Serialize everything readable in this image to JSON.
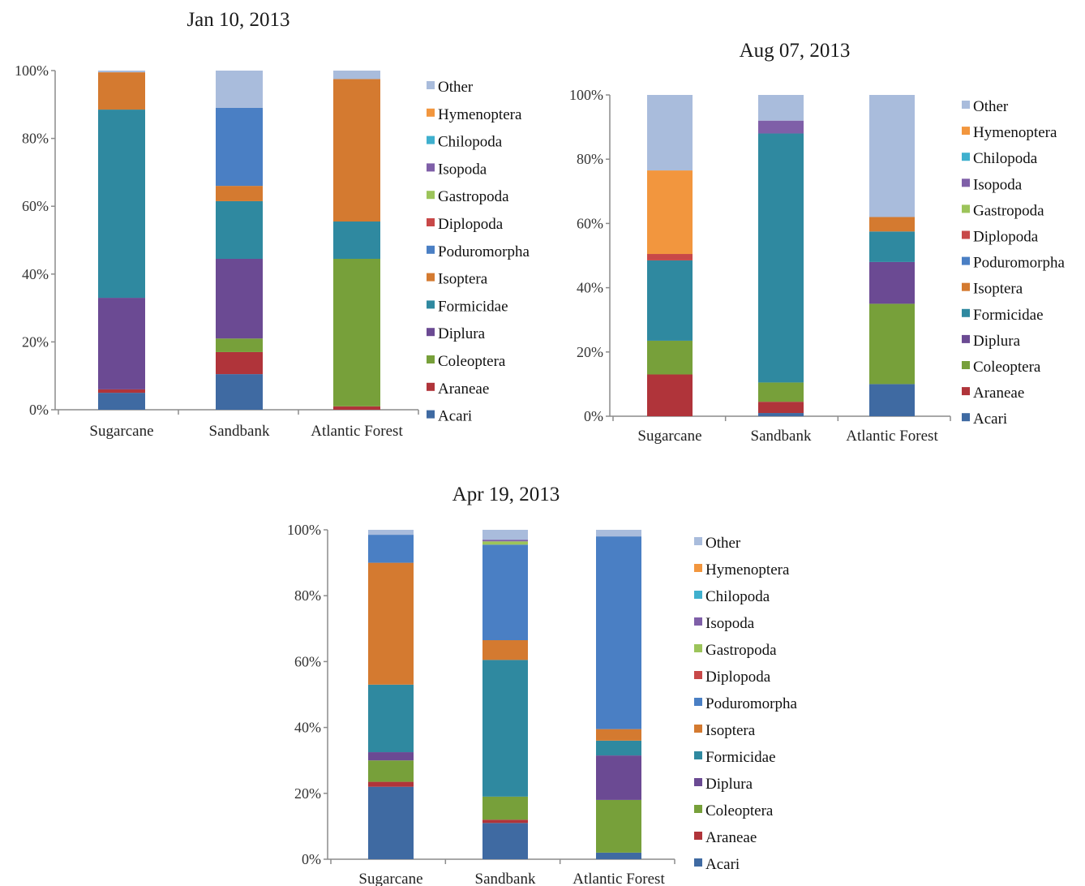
{
  "colors": {
    "Acari": "#3f6aa2",
    "Araneae": "#b0343a",
    "Coleoptera": "#77a03a",
    "Diplura": "#6b4a93",
    "Formicidae": "#2f89a0",
    "Isoptera": "#d47a30",
    "Poduromorpha": "#4a7fc4",
    "Diplopoda": "#c84848",
    "Gastropoda": "#9cc45a",
    "Isopoda": "#7f5fa8",
    "Chilopoda": "#3fb0ce",
    "Hymenoptera": "#f2963e",
    "Other": "#a9bcdc"
  },
  "legend_labels": [
    "Other",
    "Hymenoptera",
    "Chilopoda",
    "Isopoda",
    "Gastropoda",
    "Diplopoda",
    "Poduromorpha",
    "Isoptera",
    "Formicidae",
    "Diplura",
    "Coleoptera",
    "Araneae",
    "Acari"
  ],
  "chart_data": [
    {
      "type": "bar",
      "stacked": true,
      "title": "Jan 10, 2013",
      "categories": [
        "Sugarcane",
        "Sandbank",
        "Atlantic Forest"
      ],
      "ylim": [
        0,
        100
      ],
      "yticks": [
        "0%",
        "20%",
        "40%",
        "60%",
        "80%",
        "100%"
      ],
      "legend_position": "right",
      "series": [
        {
          "name": "Acari",
          "values": [
            5,
            10.5,
            0
          ]
        },
        {
          "name": "Araneae",
          "values": [
            1,
            6.5,
            1
          ]
        },
        {
          "name": "Coleoptera",
          "values": [
            0,
            4,
            43.5
          ]
        },
        {
          "name": "Diplura",
          "values": [
            27,
            23.5,
            0
          ]
        },
        {
          "name": "Formicidae",
          "values": [
            55.5,
            17,
            11
          ]
        },
        {
          "name": "Isoptera",
          "values": [
            11,
            4.5,
            42
          ]
        },
        {
          "name": "Poduromorpha",
          "values": [
            0,
            23,
            0
          ]
        },
        {
          "name": "Diplopoda",
          "values": [
            0,
            0,
            0
          ]
        },
        {
          "name": "Gastropoda",
          "values": [
            0,
            0,
            0
          ]
        },
        {
          "name": "Isopoda",
          "values": [
            0,
            0,
            0
          ]
        },
        {
          "name": "Chilopoda",
          "values": [
            0,
            0,
            0
          ]
        },
        {
          "name": "Hymenoptera",
          "values": [
            0,
            0,
            0
          ]
        },
        {
          "name": "Other",
          "values": [
            0.5,
            11,
            2.5
          ]
        }
      ]
    },
    {
      "type": "bar",
      "stacked": true,
      "title": "Aug 07, 2013",
      "categories": [
        "Sugarcane",
        "Sandbank",
        "Atlantic Forest"
      ],
      "ylim": [
        0,
        100
      ],
      "yticks": [
        "0%",
        "20%",
        "40%",
        "60%",
        "80%",
        "100%"
      ],
      "legend_position": "right",
      "series": [
        {
          "name": "Acari",
          "values": [
            0,
            1,
            10
          ]
        },
        {
          "name": "Araneae",
          "values": [
            13,
            3.5,
            0
          ]
        },
        {
          "name": "Coleoptera",
          "values": [
            10.5,
            6,
            25
          ]
        },
        {
          "name": "Diplura",
          "values": [
            0,
            0,
            13
          ]
        },
        {
          "name": "Formicidae",
          "values": [
            25,
            77.5,
            9.5
          ]
        },
        {
          "name": "Isoptera",
          "values": [
            0,
            0,
            4.5
          ]
        },
        {
          "name": "Poduromorpha",
          "values": [
            0,
            0,
            0
          ]
        },
        {
          "name": "Diplopoda",
          "values": [
            2,
            0,
            0
          ]
        },
        {
          "name": "Gastropoda",
          "values": [
            0,
            0,
            0
          ]
        },
        {
          "name": "Isopoda",
          "values": [
            0,
            4,
            0
          ]
        },
        {
          "name": "Chilopoda",
          "values": [
            0,
            0,
            0
          ]
        },
        {
          "name": "Hymenoptera",
          "values": [
            26,
            0,
            0
          ]
        },
        {
          "name": "Other",
          "values": [
            23.5,
            8,
            38
          ]
        }
      ]
    },
    {
      "type": "bar",
      "stacked": true,
      "title": "Apr 19, 2013",
      "categories": [
        "Sugarcane",
        "Sandbank",
        "Atlantic Forest"
      ],
      "ylim": [
        0,
        100
      ],
      "yticks": [
        "0%",
        "20%",
        "40%",
        "60%",
        "80%",
        "100%"
      ],
      "legend_position": "right",
      "series": [
        {
          "name": "Acari",
          "values": [
            22,
            11,
            2
          ]
        },
        {
          "name": "Araneae",
          "values": [
            1.5,
            1,
            0
          ]
        },
        {
          "name": "Coleoptera",
          "values": [
            6.5,
            7,
            16
          ]
        },
        {
          "name": "Diplura",
          "values": [
            2.5,
            0,
            13.5
          ]
        },
        {
          "name": "Formicidae",
          "values": [
            20.5,
            41.5,
            4.5
          ]
        },
        {
          "name": "Isoptera",
          "values": [
            37,
            6,
            3.5
          ]
        },
        {
          "name": "Poduromorpha",
          "values": [
            8.5,
            29,
            58.5
          ]
        },
        {
          "name": "Diplopoda",
          "values": [
            0,
            0,
            0
          ]
        },
        {
          "name": "Gastropoda",
          "values": [
            0,
            1,
            0
          ]
        },
        {
          "name": "Isopoda",
          "values": [
            0,
            0.5,
            0
          ]
        },
        {
          "name": "Chilopoda",
          "values": [
            0,
            0,
            0
          ]
        },
        {
          "name": "Hymenoptera",
          "values": [
            0,
            0,
            0
          ]
        },
        {
          "name": "Other",
          "values": [
            1.5,
            3,
            2
          ]
        }
      ]
    }
  ]
}
